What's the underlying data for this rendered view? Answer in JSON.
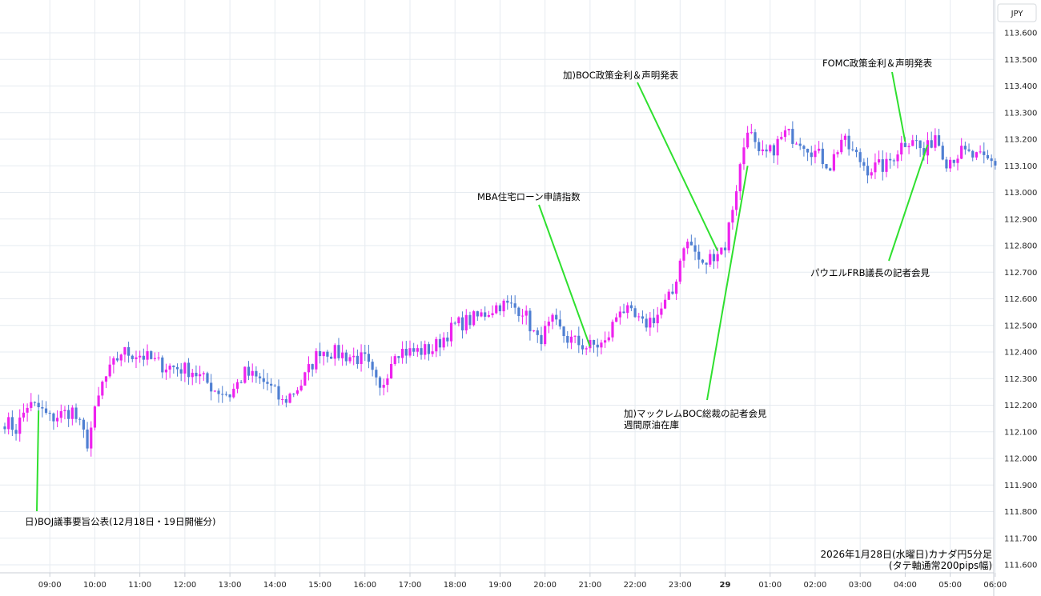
{
  "chart_data": {
    "type": "candlestick",
    "currency_badge": "JPY",
    "y_ticks": [
      111.6,
      111.7,
      111.8,
      111.9,
      112.0,
      112.1,
      112.2,
      112.3,
      112.4,
      112.5,
      112.6,
      112.7,
      112.8,
      112.9,
      113.0,
      113.1,
      113.2,
      113.3,
      113.4,
      113.5,
      113.6
    ],
    "y_tick_labels": [
      "111.600",
      "111.700",
      "111.800",
      "111.900",
      "112.000",
      "112.100",
      "112.200",
      "112.300",
      "112.400",
      "112.500",
      "112.600",
      "112.700",
      "112.800",
      "112.900",
      "113.000",
      "113.100",
      "113.200",
      "113.300",
      "113.400",
      "113.500",
      "113.600"
    ],
    "ylim": [
      111.57,
      113.77
    ],
    "x_ticks": [
      {
        "bar": 12,
        "label": "09:00",
        "bold": false
      },
      {
        "bar": 24,
        "label": "10:00",
        "bold": false
      },
      {
        "bar": 36,
        "label": "11:00",
        "bold": false
      },
      {
        "bar": 48,
        "label": "12:00",
        "bold": false
      },
      {
        "bar": 60,
        "label": "13:00",
        "bold": false
      },
      {
        "bar": 72,
        "label": "14:00",
        "bold": false
      },
      {
        "bar": 84,
        "label": "15:00",
        "bold": false
      },
      {
        "bar": 96,
        "label": "16:00",
        "bold": false
      },
      {
        "bar": 108,
        "label": "17:00",
        "bold": false
      },
      {
        "bar": 120,
        "label": "18:00",
        "bold": false
      },
      {
        "bar": 132,
        "label": "19:00",
        "bold": false
      },
      {
        "bar": 144,
        "label": "20:00",
        "bold": false
      },
      {
        "bar": 156,
        "label": "21:00",
        "bold": false
      },
      {
        "bar": 168,
        "label": "22:00",
        "bold": false
      },
      {
        "bar": 180,
        "label": "23:00",
        "bold": false
      },
      {
        "bar": 192,
        "label": "29",
        "bold": true
      },
      {
        "bar": 204,
        "label": "01:00",
        "bold": false
      },
      {
        "bar": 216,
        "label": "02:00",
        "bold": false
      },
      {
        "bar": 228,
        "label": "03:00",
        "bold": false
      },
      {
        "bar": 240,
        "label": "04:00",
        "bold": false
      },
      {
        "bar": 252,
        "label": "05:00",
        "bold": false
      },
      {
        "bar": 264,
        "label": "06:00",
        "bold": false
      }
    ],
    "x_bars_total": 265,
    "colors": {
      "up": "#ee22ee",
      "down": "#4f7fd2",
      "annotation_line": "#2fe02f",
      "grid": "#e6ebf0"
    },
    "anchors": [
      [
        0,
        112.14
      ],
      [
        3,
        112.11
      ],
      [
        6,
        112.2
      ],
      [
        9,
        112.19
      ],
      [
        12,
        112.15
      ],
      [
        18,
        112.18
      ],
      [
        22,
        112.06
      ],
      [
        26,
        112.28
      ],
      [
        31,
        112.4
      ],
      [
        36,
        112.39
      ],
      [
        42,
        112.35
      ],
      [
        50,
        112.33
      ],
      [
        56,
        112.26
      ],
      [
        60,
        112.24
      ],
      [
        64,
        112.32
      ],
      [
        70,
        112.28
      ],
      [
        74,
        112.21
      ],
      [
        79,
        112.28
      ],
      [
        84,
        112.41
      ],
      [
        90,
        112.39
      ],
      [
        96,
        112.37
      ],
      [
        100,
        112.25
      ],
      [
        104,
        112.41
      ],
      [
        108,
        112.4
      ],
      [
        114,
        112.41
      ],
      [
        120,
        112.5
      ],
      [
        126,
        112.53
      ],
      [
        132,
        112.58
      ],
      [
        138,
        112.56
      ],
      [
        142,
        112.44
      ],
      [
        146,
        112.51
      ],
      [
        150,
        112.45
      ],
      [
        155,
        112.42
      ],
      [
        160,
        112.43
      ],
      [
        164,
        112.57
      ],
      [
        170,
        112.5
      ],
      [
        174,
        112.54
      ],
      [
        178,
        112.62
      ],
      [
        181,
        112.81
      ],
      [
        183,
        112.8
      ],
      [
        186,
        112.72
      ],
      [
        189,
        112.77
      ],
      [
        192,
        112.8
      ],
      [
        195,
        113.02
      ],
      [
        198,
        113.25
      ],
      [
        201,
        113.13
      ],
      [
        204,
        113.15
      ],
      [
        208,
        113.22
      ],
      [
        212,
        113.2
      ],
      [
        216,
        113.15
      ],
      [
        220,
        113.1
      ],
      [
        223,
        113.2
      ],
      [
        226,
        113.15
      ],
      [
        230,
        113.09
      ],
      [
        235,
        113.1
      ],
      [
        239,
        113.18
      ],
      [
        242,
        113.21
      ],
      [
        245,
        113.14
      ],
      [
        248,
        113.22
      ],
      [
        251,
        113.12
      ],
      [
        255,
        113.15
      ],
      [
        259,
        113.13
      ],
      [
        264,
        113.11
      ]
    ],
    "annotations": [
      {
        "bar": 9,
        "price": 112.18,
        "lines": [
          "日)BOJ議事要旨公表(12月18日・19日開催分)"
        ]
      },
      {
        "bar": 156,
        "price": 112.42,
        "lines": [
          "MBA住宅ローン申請指数"
        ]
      },
      {
        "bar": 190,
        "price": 112.78,
        "lines": [
          "加)BOC政策金利＆声明発表"
        ]
      },
      {
        "bar": 198,
        "price": 113.1,
        "lines": [
          "加)マックレムBOC総裁の記者会見",
          "週間原油在庫"
        ]
      },
      {
        "bar": 240,
        "price": 113.19,
        "lines": [
          "FOMC政策金利＆声明発表"
        ]
      },
      {
        "bar": 246,
        "price": 113.18,
        "lines": [
          "パウエルFRB議長の記者会見"
        ]
      }
    ],
    "footer": [
      "2026年1月28日(水曜日)カナダ円5分足",
      "(タテ軸通常200pips幅)"
    ]
  }
}
